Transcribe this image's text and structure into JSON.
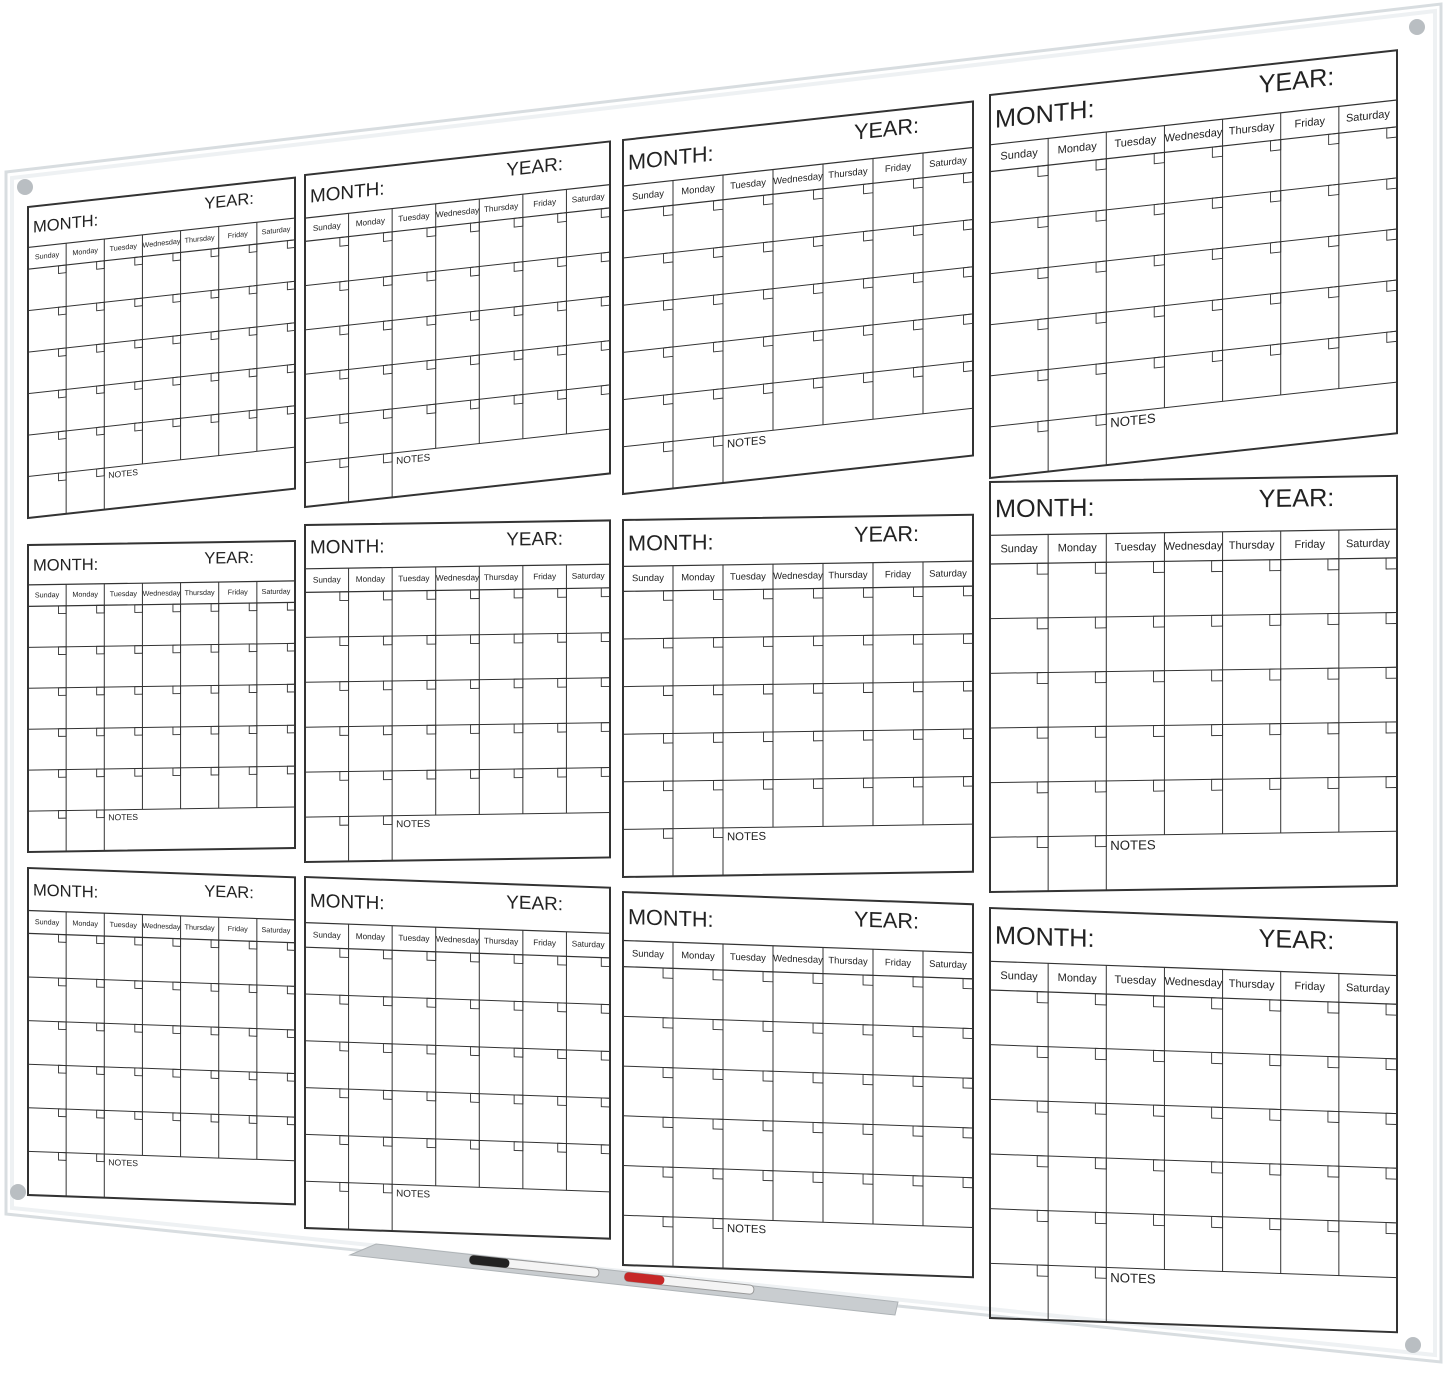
{
  "panels": [
    {
      "month": "MONTH:",
      "year": "YEAR:",
      "days": [
        "Sunday",
        "Monday",
        "Tuesday",
        "Wednesday",
        "Thursday",
        "Friday",
        "Saturday"
      ],
      "notes": "NOTES"
    },
    {
      "month": "MONTH:",
      "year": "YEAR:",
      "days": [
        "Sunday",
        "Monday",
        "Tuesday",
        "Wednesday",
        "Thursday",
        "Friday",
        "Saturday"
      ],
      "notes": "NOTES"
    },
    {
      "month": "MONTH:",
      "year": "YEAR:",
      "days": [
        "Sunday",
        "Monday",
        "Tuesday",
        "Wednesday",
        "Thursday",
        "Friday",
        "Saturday"
      ],
      "notes": "NOTES"
    },
    {
      "month": "MONTH:",
      "year": "YEAR:",
      "days": [
        "Sunday",
        "Monday",
        "Tuesday",
        "Wednesday",
        "Thursday",
        "Friday",
        "Saturday"
      ],
      "notes": "NOTES"
    },
    {
      "month": "MONTH:",
      "year": "YEAR:",
      "days": [
        "Sunday",
        "Monday",
        "Tuesday",
        "Wednesday",
        "Thursday",
        "Friday",
        "Saturday"
      ],
      "notes": "NOTES"
    },
    {
      "month": "MONTH:",
      "year": "YEAR:",
      "days": [
        "Sunday",
        "Monday",
        "Tuesday",
        "Wednesday",
        "Thursday",
        "Friday",
        "Saturday"
      ],
      "notes": "NOTES"
    },
    {
      "month": "MONTH:",
      "year": "YEAR:",
      "days": [
        "Sunday",
        "Monday",
        "Tuesday",
        "Wednesday",
        "Thursday",
        "Friday",
        "Saturday"
      ],
      "notes": "NOTES"
    },
    {
      "month": "MONTH:",
      "year": "YEAR:",
      "days": [
        "Sunday",
        "Monday",
        "Tuesday",
        "Wednesday",
        "Thursday",
        "Friday",
        "Saturday"
      ],
      "notes": "NOTES"
    },
    {
      "month": "MONTH:",
      "year": "YEAR:",
      "days": [
        "Sunday",
        "Monday",
        "Tuesday",
        "Wednesday",
        "Thursday",
        "Friday",
        "Saturday"
      ],
      "notes": "NOTES"
    },
    {
      "month": "MONTH:",
      "year": "YEAR:",
      "days": [
        "Sunday",
        "Monday",
        "Tuesday",
        "Wednesday",
        "Thursday",
        "Friday",
        "Saturday"
      ],
      "notes": "NOTES"
    },
    {
      "month": "MONTH:",
      "year": "YEAR:",
      "days": [
        "Sunday",
        "Monday",
        "Tuesday",
        "Wednesday",
        "Thursday",
        "Friday",
        "Saturday"
      ],
      "notes": "NOTES"
    },
    {
      "month": "MONTH:",
      "year": "YEAR:",
      "days": [
        "Sunday",
        "Monday",
        "Tuesday",
        "Wednesday",
        "Thursday",
        "Friday",
        "Saturday"
      ],
      "notes": "NOTES"
    }
  ]
}
